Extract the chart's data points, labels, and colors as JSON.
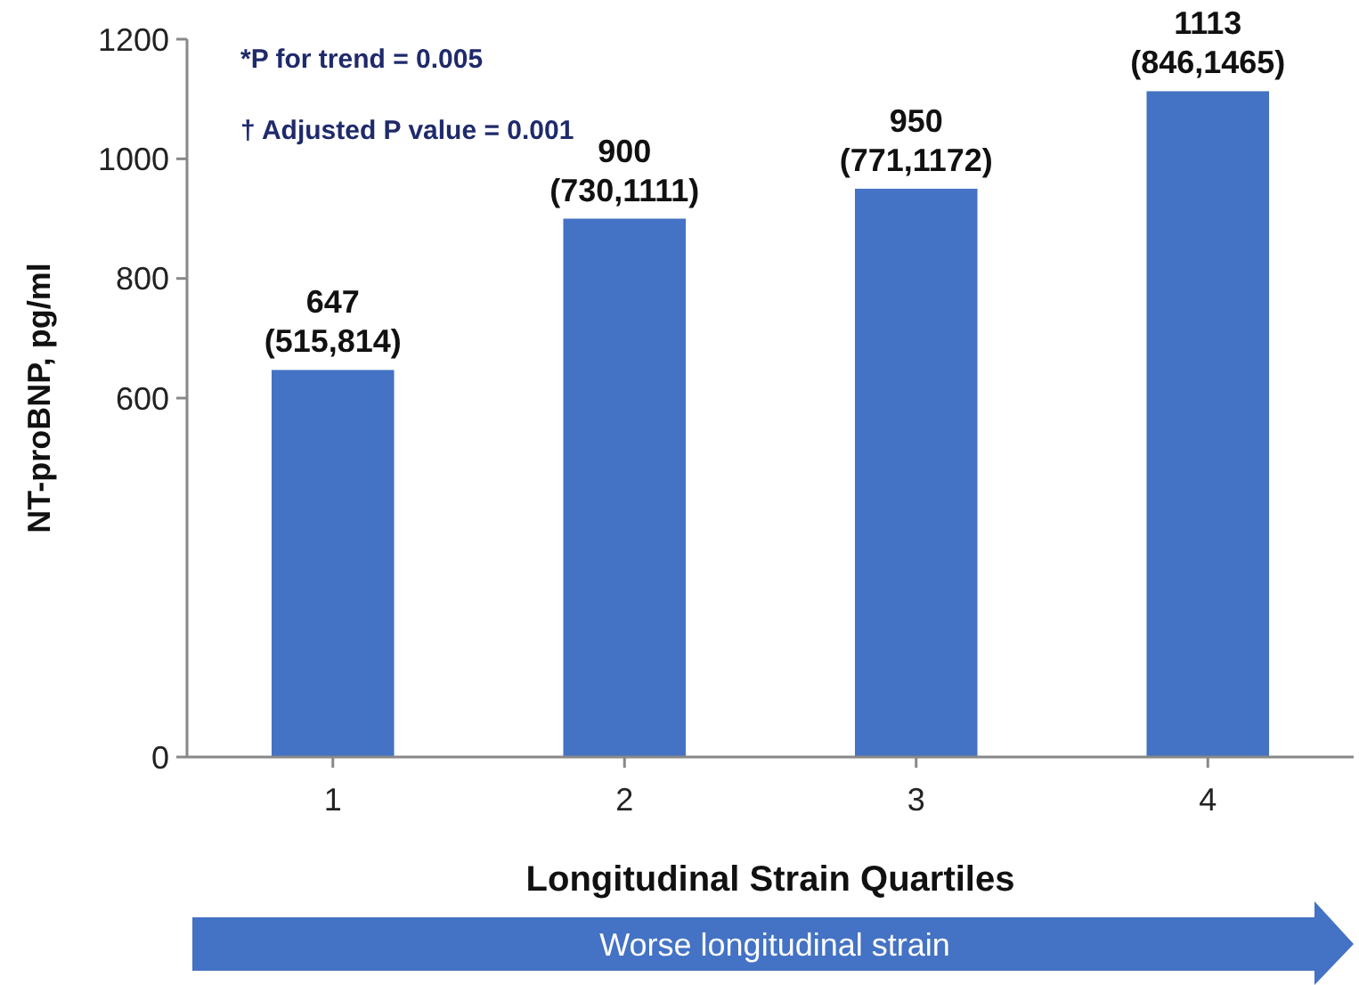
{
  "chart_data": {
    "type": "bar",
    "ylabel": "NT-proBNP, pg/ml",
    "xlabel": "Longitudinal Strain Quartiles",
    "categories": [
      "1",
      "2",
      "3",
      "4"
    ],
    "values": [
      647,
      900,
      950,
      1113
    ],
    "color": "#4472c4",
    "value_labels": [
      "647\n(515,814)",
      "900\n(730,1111)",
      "950\n(771,1172)",
      "1113\n(846,1465)"
    ],
    "ylim": [
      0,
      1200
    ],
    "yticks": [
      0,
      600,
      800,
      1000,
      1200
    ],
    "grid": false,
    "annotations": [
      "*P for trend = 0.005",
      "† Adjusted P value = 0.001",
      "Worse longitudinal strain"
    ]
  }
}
